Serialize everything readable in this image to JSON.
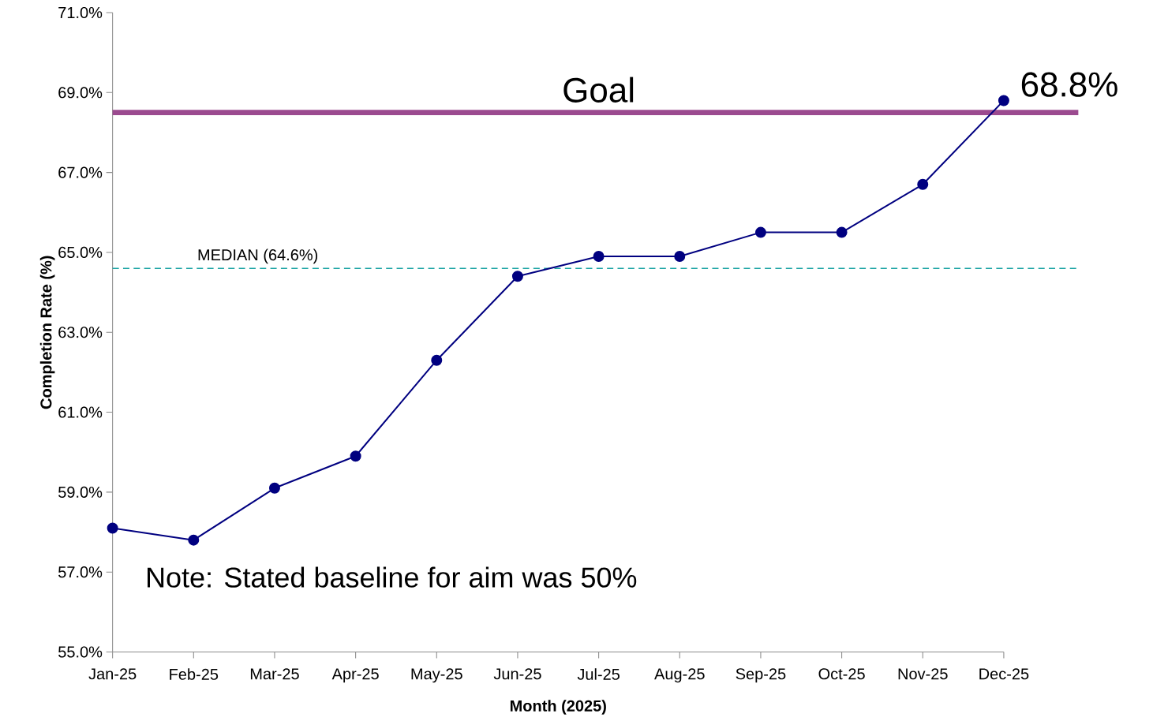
{
  "chart_data": {
    "type": "line",
    "xlabel": "Month (2025)",
    "ylabel": "Completion Rate (%)",
    "categories": [
      "Jan-25",
      "Feb-25",
      "Mar-25",
      "Apr-25",
      "May-25",
      "Jun-25",
      "Jul-25",
      "Aug-25",
      "Sep-25",
      "Oct-25",
      "Nov-25",
      "Dec-25"
    ],
    "series": [
      {
        "color": "#000080",
        "values": [
          58.1,
          57.8,
          59.1,
          59.9,
          62.3,
          64.4,
          64.9,
          64.9,
          65.5,
          65.5,
          66.7,
          68.8
        ],
        "value_labels": [
          null,
          null,
          null,
          null,
          null,
          null,
          null,
          null,
          null,
          null,
          null,
          "68.8%"
        ]
      }
    ],
    "ylim": [
      55,
      71
    ],
    "yticks": [
      {
        "value": 55,
        "label": "55.0%"
      },
      {
        "value": 57,
        "label": "57.0%"
      },
      {
        "value": 59,
        "label": "59.0%"
      },
      {
        "value": 61,
        "label": "61.0%"
      },
      {
        "value": 63,
        "label": "63.0%"
      },
      {
        "value": 65,
        "label": "65.0%"
      },
      {
        "value": 67,
        "label": "67.0%"
      },
      {
        "value": 69,
        "label": "69.0%"
      },
      {
        "value": 71,
        "label": "71.0%"
      }
    ],
    "ref_lines": [
      {
        "axis": "y",
        "value": 68.5,
        "label": "Goal",
        "color": "#9b4a8f",
        "line_style": "solid"
      },
      {
        "axis": "y",
        "value": 64.6,
        "label": "MEDIAN (64.6%)",
        "color": "#1aa3a3",
        "line_style": "dashed"
      }
    ],
    "annotations": [
      "Note:  Stated baseline for aim was 50%"
    ],
    "marker": "circle",
    "line_style": "solid"
  }
}
